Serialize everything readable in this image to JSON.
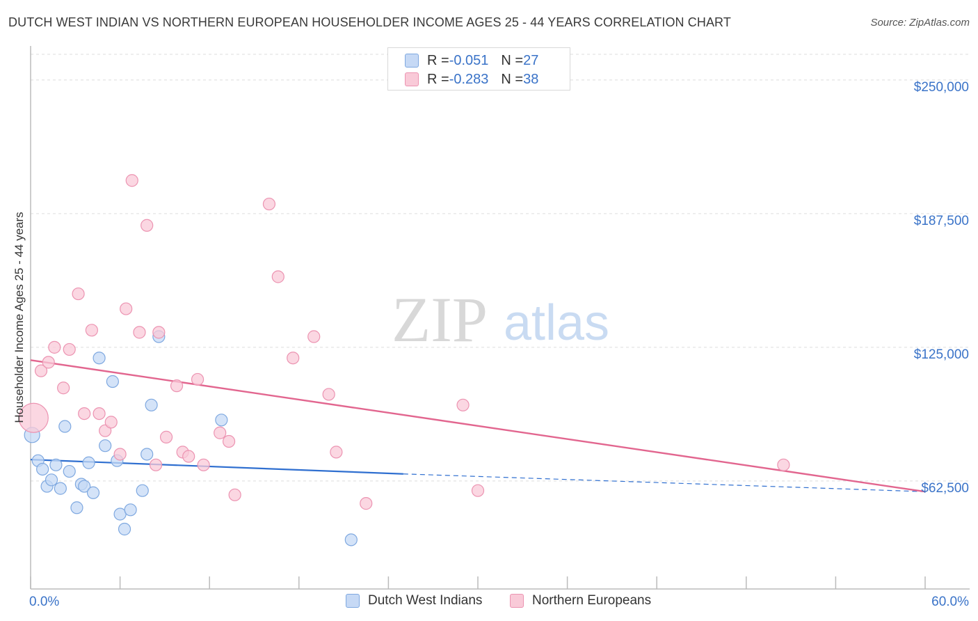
{
  "header": {
    "title": "DUTCH WEST INDIAN VS NORTHERN EUROPEAN HOUSEHOLDER INCOME AGES 25 - 44 YEARS CORRELATION CHART",
    "source": "Source: ZipAtlas.com"
  },
  "watermark": {
    "zip": "ZIP",
    "atlas": "atlas"
  },
  "legend": {
    "rows": [
      {
        "r_label": "R = ",
        "r_value": "-0.051",
        "n_label": "N = ",
        "n_value": "27",
        "fill": "#c6d9f5",
        "stroke": "#7ea8e0"
      },
      {
        "r_label": "R = ",
        "r_value": "-0.283",
        "n_label": "N = ",
        "n_value": "38",
        "fill": "#f9cad8",
        "stroke": "#ec93b1"
      }
    ],
    "bottom": [
      {
        "label": "Dutch West Indians",
        "fill": "#c6d9f5",
        "stroke": "#7ea8e0"
      },
      {
        "label": "Northern Europeans",
        "fill": "#f9cad8",
        "stroke": "#ec93b1"
      }
    ]
  },
  "colors": {
    "blue_point_fill": "#c6d9f5",
    "blue_point_stroke": "#7ea8e0",
    "blue_line": "#2f6fd0",
    "pink_point_fill": "#f9cad8",
    "pink_point_stroke": "#ec93b1",
    "pink_line": "#e2668f",
    "tick_label": "#3a73c8",
    "grid": "#dddddd"
  },
  "chart_data": {
    "type": "scatter",
    "title": "DUTCH WEST INDIAN VS NORTHERN EUROPEAN HOUSEHOLDER INCOME AGES 25 - 44 YEARS CORRELATION CHART",
    "xlabel": "",
    "ylabel": "Householder Income Ages 25 - 44 years",
    "xlim": [
      0,
      60
    ],
    "ylim": [
      12000,
      262000
    ],
    "x_tick_labels": [
      "0.0%",
      "60.0%"
    ],
    "y_ticks": [
      62500,
      125000,
      187500,
      250000
    ],
    "y_tick_labels": [
      "$62,500",
      "$125,000",
      "$187,500",
      "$250,000"
    ],
    "grid": true,
    "legend_position": "top-center",
    "series": [
      {
        "name": "Dutch West Indians",
        "r": -0.051,
        "n": 27,
        "points": [
          {
            "x": 0.1,
            "y": 84000
          },
          {
            "x": 0.5,
            "y": 72000
          },
          {
            "x": 0.8,
            "y": 68000
          },
          {
            "x": 1.1,
            "y": 60000
          },
          {
            "x": 1.4,
            "y": 63000
          },
          {
            "x": 1.7,
            "y": 70000
          },
          {
            "x": 2.0,
            "y": 59000
          },
          {
            "x": 2.3,
            "y": 88000
          },
          {
            "x": 2.6,
            "y": 67000
          },
          {
            "x": 3.1,
            "y": 50000
          },
          {
            "x": 3.4,
            "y": 61000
          },
          {
            "x": 3.6,
            "y": 60000
          },
          {
            "x": 3.9,
            "y": 71000
          },
          {
            "x": 4.2,
            "y": 57000
          },
          {
            "x": 4.6,
            "y": 120000
          },
          {
            "x": 5.0,
            "y": 79000
          },
          {
            "x": 5.5,
            "y": 109000
          },
          {
            "x": 5.8,
            "y": 72000
          },
          {
            "x": 6.0,
            "y": 47000
          },
          {
            "x": 6.3,
            "y": 40000
          },
          {
            "x": 6.7,
            "y": 49000
          },
          {
            "x": 7.5,
            "y": 58000
          },
          {
            "x": 7.8,
            "y": 75000
          },
          {
            "x": 8.1,
            "y": 98000
          },
          {
            "x": 8.6,
            "y": 130000
          },
          {
            "x": 12.8,
            "y": 91000
          },
          {
            "x": 21.5,
            "y": 35000
          }
        ],
        "trend": {
          "x0": 0,
          "y0": 72500,
          "x1": 25,
          "y1": 65800,
          "dashed_to": {
            "x": 60,
            "y": 57500
          }
        }
      },
      {
        "name": "Northern Europeans",
        "r": -0.283,
        "n": 38,
        "points": [
          {
            "x": 0.2,
            "y": 92000
          },
          {
            "x": 0.7,
            "y": 114000
          },
          {
            "x": 1.2,
            "y": 118000
          },
          {
            "x": 1.6,
            "y": 125000
          },
          {
            "x": 2.2,
            "y": 106000
          },
          {
            "x": 2.6,
            "y": 124000
          },
          {
            "x": 3.2,
            "y": 150000
          },
          {
            "x": 3.6,
            "y": 94000
          },
          {
            "x": 4.1,
            "y": 133000
          },
          {
            "x": 4.6,
            "y": 94000
          },
          {
            "x": 5.0,
            "y": 86000
          },
          {
            "x": 5.4,
            "y": 90000
          },
          {
            "x": 6.0,
            "y": 75000
          },
          {
            "x": 6.4,
            "y": 143000
          },
          {
            "x": 6.8,
            "y": 203000
          },
          {
            "x": 7.3,
            "y": 132000
          },
          {
            "x": 7.8,
            "y": 182000
          },
          {
            "x": 8.4,
            "y": 70000
          },
          {
            "x": 8.6,
            "y": 132000
          },
          {
            "x": 9.1,
            "y": 83000
          },
          {
            "x": 9.8,
            "y": 107000
          },
          {
            "x": 10.2,
            "y": 76000
          },
          {
            "x": 10.6,
            "y": 74000
          },
          {
            "x": 11.2,
            "y": 110000
          },
          {
            "x": 11.6,
            "y": 70000
          },
          {
            "x": 12.7,
            "y": 85000
          },
          {
            "x": 13.3,
            "y": 81000
          },
          {
            "x": 13.7,
            "y": 56000
          },
          {
            "x": 16.0,
            "y": 192000
          },
          {
            "x": 16.6,
            "y": 158000
          },
          {
            "x": 17.6,
            "y": 120000
          },
          {
            "x": 19.0,
            "y": 130000
          },
          {
            "x": 20.0,
            "y": 103000
          },
          {
            "x": 20.5,
            "y": 76000
          },
          {
            "x": 22.5,
            "y": 52000
          },
          {
            "x": 29.0,
            "y": 98000
          },
          {
            "x": 30.0,
            "y": 58000
          },
          {
            "x": 50.5,
            "y": 70000
          }
        ],
        "trend": {
          "x0": 0,
          "y0": 119000,
          "x1": 60,
          "y1": 57500
        }
      }
    ]
  }
}
